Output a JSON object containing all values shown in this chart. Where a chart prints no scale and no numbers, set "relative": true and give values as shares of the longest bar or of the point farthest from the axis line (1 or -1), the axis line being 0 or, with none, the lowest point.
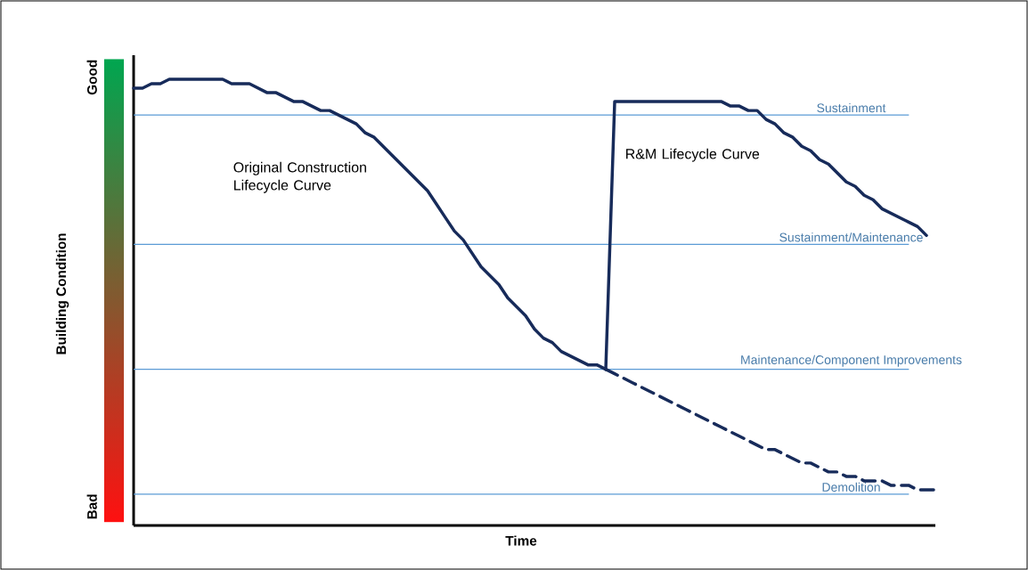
{
  "chart_data": {
    "type": "line",
    "relative": true,
    "xlabel": "Time",
    "ylabel": "Building Condition",
    "annotations": [
      "Good",
      "Bad"
    ],
    "categories": [
      null,
      null,
      null,
      null,
      null,
      null,
      null,
      null,
      null,
      null,
      null,
      null,
      null,
      null,
      null,
      null,
      null,
      null,
      null,
      null,
      null,
      null,
      null,
      null,
      null,
      null,
      null,
      null,
      null,
      null,
      null,
      null,
      null,
      null,
      null,
      null,
      null,
      null,
      null,
      null,
      null,
      null,
      null,
      null,
      null,
      null,
      null,
      null,
      null,
      null,
      null,
      null,
      null,
      null,
      null,
      null,
      null,
      null,
      null,
      null,
      null,
      null,
      null,
      null,
      null,
      null,
      null,
      null,
      null,
      null,
      null,
      null,
      null,
      null,
      null,
      null,
      null,
      null,
      null,
      null,
      null,
      null,
      null,
      null,
      null,
      null,
      null,
      null,
      null,
      null,
      null
    ],
    "series": [
      {
        "name": "Original Construction Lifecycle Curve",
        "color": "#172b5a",
        "line_style": "solid",
        "values": [
          0.98,
          0.98,
          0.99,
          0.99,
          1,
          1,
          1,
          1,
          1,
          1,
          1,
          0.99,
          0.99,
          0.99,
          0.98,
          0.97,
          0.97,
          0.96,
          0.95,
          0.95,
          0.94,
          0.93,
          0.93,
          0.92,
          0.91,
          0.9,
          0.88,
          0.87,
          0.85,
          0.83,
          0.81,
          0.79,
          0.77,
          0.75,
          0.72,
          0.69,
          0.66,
          0.64,
          0.61,
          0.58,
          0.56,
          0.54,
          0.51,
          0.49,
          0.47,
          0.44,
          0.42,
          0.41,
          0.39,
          0.38,
          0.37,
          0.36,
          0.36,
          0.35,
          null,
          null,
          null,
          null,
          null,
          null,
          null,
          null,
          null,
          null,
          null,
          null,
          null,
          null,
          null,
          null,
          null,
          null,
          null,
          null,
          null,
          null,
          null,
          null,
          null,
          null,
          null,
          null,
          null,
          null,
          null,
          null,
          null,
          null,
          null,
          null,
          null
        ]
      },
      {
        "name": "R&M Lifecycle Curve",
        "color": "#172b5a",
        "line_style": "solid",
        "values": [
          null,
          null,
          null,
          null,
          null,
          null,
          null,
          null,
          null,
          null,
          null,
          null,
          null,
          null,
          null,
          null,
          null,
          null,
          null,
          null,
          null,
          null,
          null,
          null,
          null,
          null,
          null,
          null,
          null,
          null,
          null,
          null,
          null,
          null,
          null,
          null,
          null,
          null,
          null,
          null,
          null,
          null,
          null,
          null,
          null,
          null,
          null,
          null,
          null,
          null,
          null,
          null,
          null,
          0.35,
          0.95,
          0.95,
          0.95,
          0.95,
          0.95,
          0.95,
          0.95,
          0.95,
          0.95,
          0.95,
          0.95,
          0.95,
          0.95,
          0.94,
          0.94,
          0.93,
          0.93,
          0.91,
          0.9,
          0.88,
          0.87,
          0.85,
          0.84,
          0.82,
          0.81,
          0.79,
          0.77,
          0.76,
          0.74,
          0.73,
          0.71,
          0.7,
          0.69,
          0.68,
          0.67,
          0.65,
          null
        ]
      },
      {
        "color": "#172b5a",
        "line_style": "dashed",
        "values": [
          null,
          null,
          null,
          null,
          null,
          null,
          null,
          null,
          null,
          null,
          null,
          null,
          null,
          null,
          null,
          null,
          null,
          null,
          null,
          null,
          null,
          null,
          null,
          null,
          null,
          null,
          null,
          null,
          null,
          null,
          null,
          null,
          null,
          null,
          null,
          null,
          null,
          null,
          null,
          null,
          null,
          null,
          null,
          null,
          null,
          null,
          null,
          null,
          null,
          null,
          null,
          null,
          null,
          0.35,
          0.34,
          0.33,
          0.32,
          0.31,
          0.3,
          0.29,
          0.28,
          0.27,
          0.26,
          0.25,
          0.24,
          0.23,
          0.22,
          0.21,
          0.2,
          0.19,
          0.18,
          0.17,
          0.17,
          0.16,
          0.15,
          0.14,
          0.14,
          0.13,
          0.12,
          0.12,
          0.11,
          0.11,
          0.1,
          0.1,
          0.1,
          0.09,
          0.09,
          0.09,
          0.08,
          0.08,
          0.08
        ]
      }
    ],
    "ref_lines": [
      {
        "axis": "y",
        "value": 0.92,
        "label": "Sustainment",
        "color": "#5b9bd5"
      },
      {
        "axis": "y",
        "value": 0.63,
        "label": "Sustainment/Maintenance",
        "color": "#5b9bd5"
      },
      {
        "axis": "y",
        "value": 0.35,
        "label": "Maintenance/Component Improvements",
        "color": "#5b9bd5"
      },
      {
        "axis": "y",
        "value": 0.07,
        "label": "Demolition",
        "color": "#5b9bd5"
      }
    ]
  }
}
